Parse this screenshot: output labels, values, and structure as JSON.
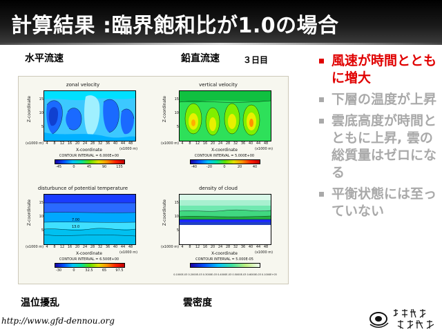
{
  "title": "計算結果 :臨界飽和比が1.0の場合",
  "labels": {
    "top_left": "水平流速",
    "top_mid": "鉛直流速",
    "day": "３日目",
    "bottom_left": "温位擾乱",
    "bottom_mid": "雲密度"
  },
  "bullets": [
    {
      "text": "風速が時間とともに増大",
      "state": "active"
    },
    {
      "text": "下層の温度が上昇",
      "state": "inactive"
    },
    {
      "text": "雲底高度が時間とともに上昇, 雲の総質量はゼロになる",
      "state": "inactive"
    },
    {
      "text": "平衡状態には至っていない",
      "state": "inactive"
    }
  ],
  "colors": {
    "active": "#e00000",
    "inactive": "#a9a9a9",
    "title_bg": "#000000",
    "title_text": "#ffffff"
  },
  "panels": [
    {
      "title": "zonal velocity",
      "ylabel": "Z-coordinate",
      "xlabel": "X-coordinate",
      "yticks": [
        "15",
        "10",
        "5"
      ],
      "xticks": [
        "4",
        "8",
        "12",
        "16",
        "20",
        "24",
        "28",
        "32",
        "36",
        "40",
        "44",
        "48"
      ],
      "yunit": "(x1000 m)",
      "xunit": "(x1000 m)",
      "contour": "CONTOUR INTERVAL = 6.000E+00",
      "cbar": [
        "-45",
        "0",
        "45",
        "90",
        "135"
      ]
    },
    {
      "title": "vertical velocity",
      "ylabel": "Z-coordinate",
      "xlabel": "X-coordinate",
      "yticks": [
        "15",
        "10",
        "5"
      ],
      "xticks": [
        "4",
        "8",
        "12",
        "16",
        "20",
        "24",
        "28",
        "32",
        "36",
        "40",
        "44",
        "48"
      ],
      "yunit": "(x1000 m)",
      "xunit": "(x1000 m)",
      "contour": "CONTOUR INTERVAL = 5.000E+00",
      "cbar": [
        "-40",
        "-20",
        "0",
        "20",
        "40"
      ]
    },
    {
      "title": "disturbunce of potential temperature",
      "ylabel": "Z-coordinate",
      "xlabel": "X-coordinate",
      "yticks": [
        "15",
        "10",
        "5"
      ],
      "xticks": [
        "4",
        "8",
        "12",
        "16",
        "20",
        "24",
        "28",
        "32",
        "36",
        "40",
        "44",
        "48"
      ],
      "yunit": "(x1000 m)",
      "xunit": "(x1000 m)",
      "contour": "CONTOUR INTERVAL = 6.500E+00",
      "cbar": [
        "-30",
        "0",
        "32.5",
        "65",
        "97.5"
      ],
      "contour_labels": [
        "7.00",
        "13.0"
      ]
    },
    {
      "title": "density of cloud",
      "ylabel": "Z-coordinate",
      "xlabel": "X-coordinate",
      "yticks": [
        "15",
        "10",
        "5"
      ],
      "xticks": [
        "4",
        "8",
        "12",
        "16",
        "20",
        "24",
        "28",
        "32",
        "36",
        "40",
        "44",
        "48"
      ],
      "yunit": "(x1000 m)",
      "xunit": "(x1000 m)",
      "contour": "CONTOUR INTERVAL = 5.000E-05",
      "cbar_note": "0.1000E-03 0.2000E-03 0.3000E-03 0.4000E-03 0.5000E-03 0.6000E-03 0.1000E+03"
    }
  ],
  "footer": {
    "url": "http://www.gfd-dennou.org"
  }
}
